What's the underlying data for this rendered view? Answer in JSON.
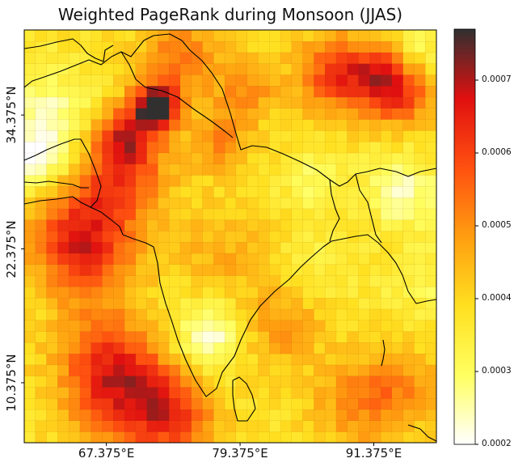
{
  "title": "Weighted PageRank during Monsoon (JJAS)",
  "map": {
    "projection": "PlateCarree",
    "lon_range": [
      60,
      97
    ],
    "lat_range": [
      5,
      42
    ],
    "grid_step_deg": 1,
    "x_ticks": [
      {
        "value": 67.375,
        "label": "67.375°E"
      },
      {
        "value": 79.375,
        "label": "79.375°E"
      },
      {
        "value": 91.375,
        "label": "91.375°E"
      }
    ],
    "y_ticks": [
      {
        "value": 10.375,
        "label": "10.375°N"
      },
      {
        "value": 22.375,
        "label": "22.375°N"
      },
      {
        "value": 34.375,
        "label": "34.375°N"
      }
    ],
    "coastline_color": "#000000"
  },
  "colorbar": {
    "colormap": "hot_r",
    "range": [
      0.0002,
      0.00077
    ],
    "ticks": [
      {
        "value": 0.0002,
        "label": "0.0002"
      },
      {
        "value": 0.0003,
        "label": "0.0003"
      },
      {
        "value": 0.0004,
        "label": "0.0004"
      },
      {
        "value": 0.0005,
        "label": "0.0005"
      },
      {
        "value": 0.0006,
        "label": "0.0006"
      },
      {
        "value": 0.0007,
        "label": "0.0007"
      }
    ],
    "stops": [
      "#ffffff",
      "#ffff60",
      "#ffe020",
      "#ff9e10",
      "#ff5010",
      "#e01010",
      "#303030"
    ]
  },
  "chart_data": {
    "type": "heatmap",
    "title": "Weighted PageRank during Monsoon (JJAS)",
    "x_tick_labels": [
      "67.375°E",
      "79.375°E",
      "91.375°E"
    ],
    "y_tick_labels": [
      "10.375°N",
      "22.375°N",
      "34.375°N"
    ],
    "value_range": [
      0.0002,
      0.00077
    ],
    "baseline": 0.00038,
    "hotspots": [
      {
        "lon": 71.9,
        "lat": 35.2,
        "value": 0.00077,
        "radius_deg": 1.4
      },
      {
        "lon": 69.2,
        "lat": 32.5,
        "value": 0.00062,
        "radius_deg": 2.0
      },
      {
        "lon": 68.5,
        "lat": 28.5,
        "value": 0.00058,
        "radius_deg": 3.0
      },
      {
        "lon": 64.5,
        "lat": 24.0,
        "value": 0.00056,
        "radius_deg": 3.0
      },
      {
        "lon": 66.0,
        "lat": 21.0,
        "value": 0.00052,
        "radius_deg": 3.0
      },
      {
        "lon": 69.5,
        "lat": 9.0,
        "value": 0.0006,
        "radius_deg": 3.5
      },
      {
        "lon": 67.0,
        "lat": 12.5,
        "value": 0.00054,
        "radius_deg": 3.0
      },
      {
        "lon": 73.5,
        "lat": 7.5,
        "value": 0.00055,
        "radius_deg": 2.5
      },
      {
        "lon": 88.0,
        "lat": 38.0,
        "value": 0.0006,
        "radius_deg": 2.5
      },
      {
        "lon": 92.0,
        "lat": 38.0,
        "value": 0.00058,
        "radius_deg": 2.0
      },
      {
        "lon": 94.0,
        "lat": 36.0,
        "value": 0.00056,
        "radius_deg": 2.0
      },
      {
        "lon": 74.0,
        "lat": 39.5,
        "value": 0.00054,
        "radius_deg": 2.5
      },
      {
        "lon": 80.0,
        "lat": 36.5,
        "value": 0.0005,
        "radius_deg": 2.0
      },
      {
        "lon": 77.5,
        "lat": 32.0,
        "value": 0.0005,
        "radius_deg": 2.0
      },
      {
        "lon": 83.0,
        "lat": 15.5,
        "value": 0.0005,
        "radius_deg": 2.5
      },
      {
        "lon": 90.0,
        "lat": 8.5,
        "value": 0.0005,
        "radius_deg": 3.0
      },
      {
        "lon": 94.0,
        "lat": 10.0,
        "value": 0.00048,
        "radius_deg": 2.5
      },
      {
        "lon": 78.0,
        "lat": 22.0,
        "value": 0.00046,
        "radius_deg": 3.0
      },
      {
        "lon": 62.0,
        "lat": 34.0,
        "value": 0.00024,
        "radius_deg": 3.0
      },
      {
        "lon": 61.0,
        "lat": 30.0,
        "value": 0.00025,
        "radius_deg": 2.0
      },
      {
        "lon": 76.5,
        "lat": 14.5,
        "value": 0.00021,
        "radius_deg": 2.2
      },
      {
        "lon": 94.0,
        "lat": 27.5,
        "value": 0.00024,
        "radius_deg": 2.2
      },
      {
        "lon": 95.0,
        "lat": 40.5,
        "value": 0.0003,
        "radius_deg": 1.8
      },
      {
        "lon": 86.0,
        "lat": 28.5,
        "value": 0.0003,
        "radius_deg": 2.0
      },
      {
        "lon": 86.0,
        "lat": 21.0,
        "value": 0.00034,
        "radius_deg": 2.5
      },
      {
        "lon": 96.0,
        "lat": 19.0,
        "value": 0.00032,
        "radius_deg": 2.5
      }
    ]
  }
}
